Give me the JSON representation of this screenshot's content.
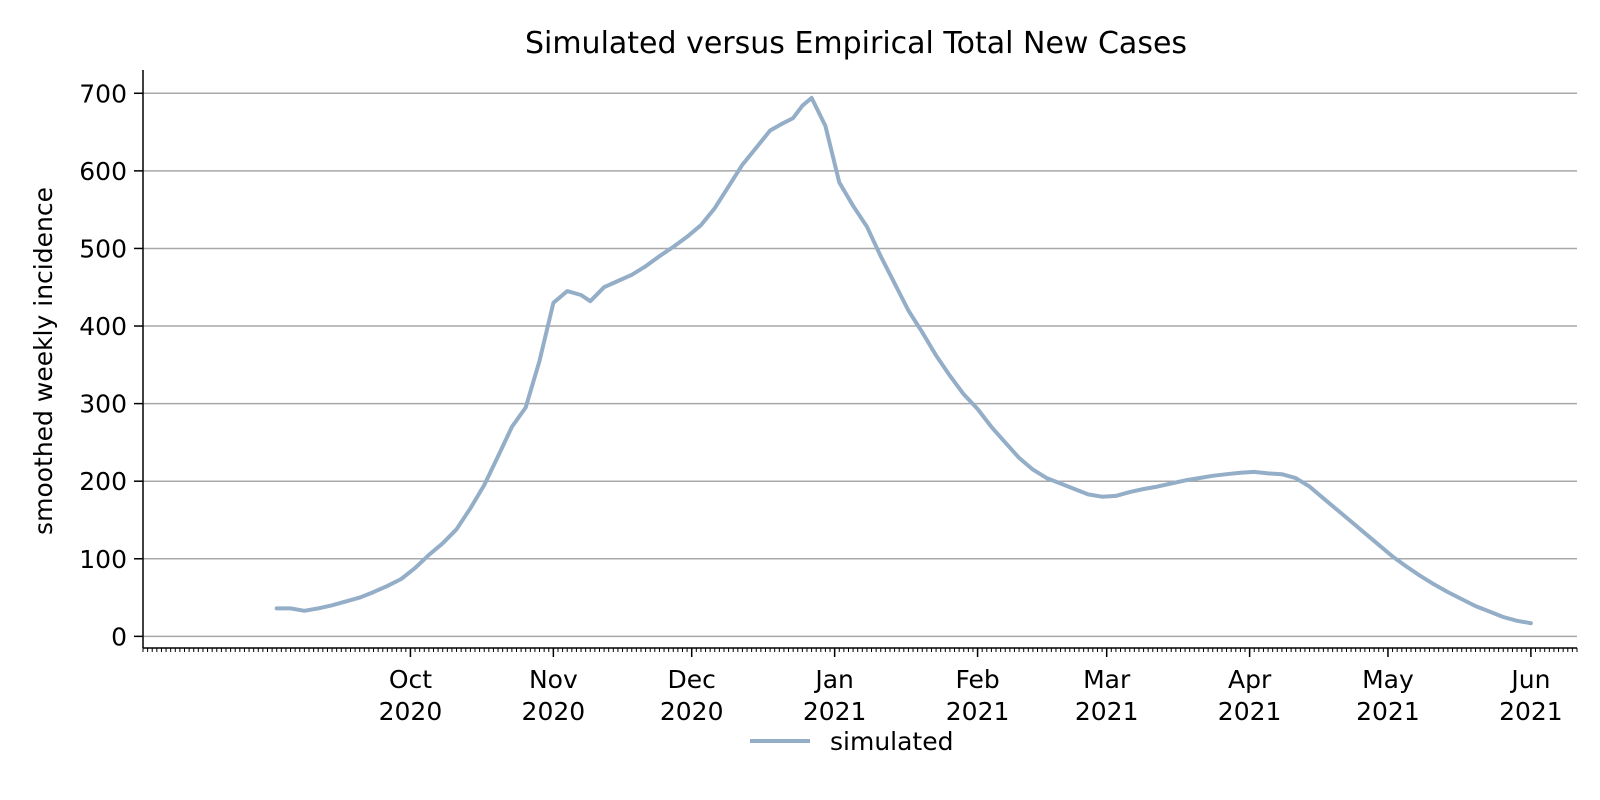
{
  "chart_data": {
    "type": "line",
    "title": "Simulated versus Empirical Total New Cases",
    "xlabel": "",
    "ylabel": "smoothed weekly incidence",
    "x_axis_type": "date",
    "xlim": [
      "2020-08-04",
      "2021-06-11"
    ],
    "ylim": [
      -15,
      730
    ],
    "yticks": [
      0,
      100,
      200,
      300,
      400,
      500,
      600,
      700
    ],
    "xticks": [
      {
        "date": "2020-10-01",
        "month": "Oct",
        "year": "2020"
      },
      {
        "date": "2020-11-01",
        "month": "Nov",
        "year": "2020"
      },
      {
        "date": "2020-12-01",
        "month": "Dec",
        "year": "2020"
      },
      {
        "date": "2021-01-01",
        "month": "Jan",
        "year": "2021"
      },
      {
        "date": "2021-02-01",
        "month": "Feb",
        "year": "2021"
      },
      {
        "date": "2021-03-01",
        "month": "Mar",
        "year": "2021"
      },
      {
        "date": "2021-04-01",
        "month": "Apr",
        "year": "2021"
      },
      {
        "date": "2021-05-01",
        "month": "May",
        "year": "2021"
      },
      {
        "date": "2021-06-01",
        "month": "Jun",
        "year": "2021"
      }
    ],
    "grid": "horizontal",
    "legend_position": "bottom-center",
    "series": [
      {
        "name": "simulated",
        "color": "#94aec8",
        "points": [
          [
            "2020-09-02",
            36
          ],
          [
            "2020-09-05",
            36
          ],
          [
            "2020-09-08",
            33
          ],
          [
            "2020-09-11",
            36
          ],
          [
            "2020-09-14",
            40
          ],
          [
            "2020-09-17",
            45
          ],
          [
            "2020-09-20",
            50
          ],
          [
            "2020-09-23",
            57
          ],
          [
            "2020-09-26",
            65
          ],
          [
            "2020-09-29",
            74
          ],
          [
            "2020-10-02",
            88
          ],
          [
            "2020-10-05",
            105
          ],
          [
            "2020-10-08",
            120
          ],
          [
            "2020-10-11",
            138
          ],
          [
            "2020-10-14",
            165
          ],
          [
            "2020-10-17",
            195
          ],
          [
            "2020-10-20",
            232
          ],
          [
            "2020-10-23",
            270
          ],
          [
            "2020-10-26",
            295
          ],
          [
            "2020-10-29",
            355
          ],
          [
            "2020-11-01",
            430
          ],
          [
            "2020-11-04",
            445
          ],
          [
            "2020-11-07",
            440
          ],
          [
            "2020-11-09",
            432
          ],
          [
            "2020-11-12",
            450
          ],
          [
            "2020-11-15",
            458
          ],
          [
            "2020-11-18",
            466
          ],
          [
            "2020-11-21",
            477
          ],
          [
            "2020-11-24",
            490
          ],
          [
            "2020-11-27",
            502
          ],
          [
            "2020-11-30",
            515
          ],
          [
            "2020-12-03",
            530
          ],
          [
            "2020-12-06",
            552
          ],
          [
            "2020-12-09",
            580
          ],
          [
            "2020-12-12",
            608
          ],
          [
            "2020-12-15",
            630
          ],
          [
            "2020-12-18",
            652
          ],
          [
            "2020-12-21",
            662
          ],
          [
            "2020-12-23",
            668
          ],
          [
            "2020-12-25",
            684
          ],
          [
            "2020-12-27",
            694
          ],
          [
            "2020-12-30",
            658
          ],
          [
            "2021-01-02",
            585
          ],
          [
            "2021-01-05",
            555
          ],
          [
            "2021-01-08",
            528
          ],
          [
            "2021-01-11",
            490
          ],
          [
            "2021-01-14",
            455
          ],
          [
            "2021-01-17",
            420
          ],
          [
            "2021-01-20",
            392
          ],
          [
            "2021-01-23",
            362
          ],
          [
            "2021-01-26",
            336
          ],
          [
            "2021-01-29",
            312
          ],
          [
            "2021-02-01",
            293
          ],
          [
            "2021-02-04",
            270
          ],
          [
            "2021-02-07",
            250
          ],
          [
            "2021-02-10",
            230
          ],
          [
            "2021-02-13",
            215
          ],
          [
            "2021-02-16",
            204
          ],
          [
            "2021-02-19",
            197
          ],
          [
            "2021-02-22",
            190
          ],
          [
            "2021-02-25",
            183
          ],
          [
            "2021-02-28",
            180
          ],
          [
            "2021-03-03",
            181
          ],
          [
            "2021-03-06",
            186
          ],
          [
            "2021-03-09",
            190
          ],
          [
            "2021-03-12",
            193
          ],
          [
            "2021-03-15",
            197
          ],
          [
            "2021-03-18",
            201
          ],
          [
            "2021-03-21",
            204
          ],
          [
            "2021-03-24",
            207
          ],
          [
            "2021-03-27",
            209
          ],
          [
            "2021-03-30",
            211
          ],
          [
            "2021-04-02",
            212
          ],
          [
            "2021-04-05",
            210
          ],
          [
            "2021-04-08",
            209
          ],
          [
            "2021-04-11",
            204
          ],
          [
            "2021-04-14",
            193
          ],
          [
            "2021-04-17",
            178
          ],
          [
            "2021-04-20",
            163
          ],
          [
            "2021-04-23",
            148
          ],
          [
            "2021-04-26",
            133
          ],
          [
            "2021-04-29",
            118
          ],
          [
            "2021-05-02",
            103
          ],
          [
            "2021-05-05",
            90
          ],
          [
            "2021-05-08",
            78
          ],
          [
            "2021-05-11",
            67
          ],
          [
            "2021-05-14",
            57
          ],
          [
            "2021-05-17",
            48
          ],
          [
            "2021-05-20",
            39
          ],
          [
            "2021-05-23",
            32
          ],
          [
            "2021-05-26",
            25
          ],
          [
            "2021-05-29",
            20
          ],
          [
            "2021-06-01",
            17
          ]
        ]
      }
    ]
  }
}
